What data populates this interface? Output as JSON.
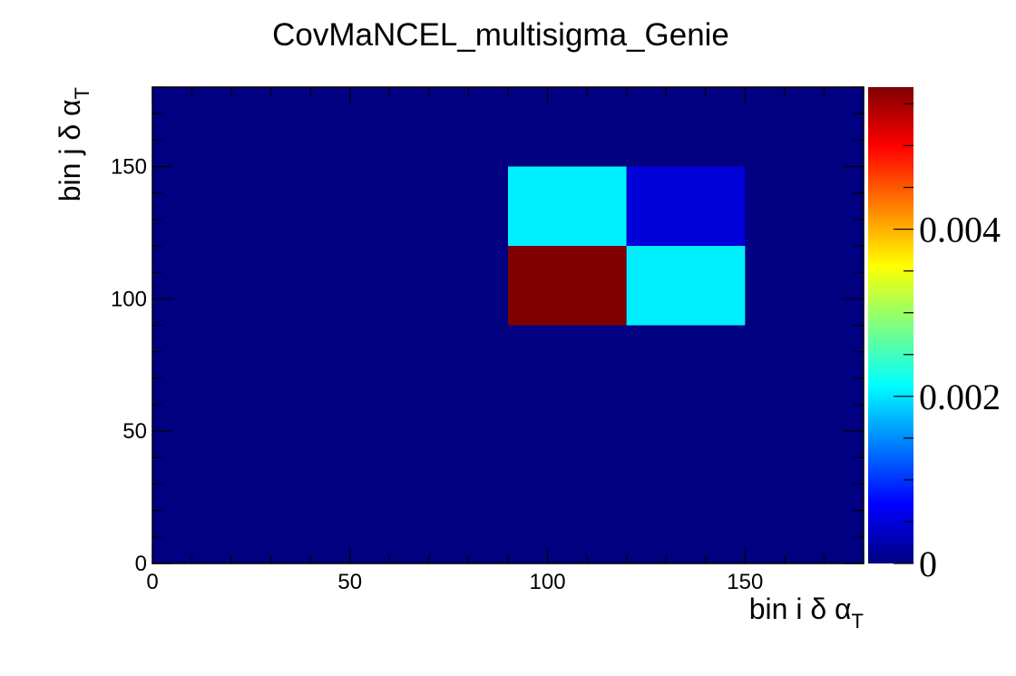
{
  "chart_data": {
    "type": "heatmap",
    "title": "CovMaNCEL_multisigma_Genie",
    "xlabel": {
      "prefix": "bin i δ α",
      "sub": "T"
    },
    "ylabel": {
      "prefix": "bin j δ α",
      "sub": "T"
    },
    "xlim": [
      0,
      180
    ],
    "ylim": [
      0,
      180
    ],
    "x_ticks": [
      0,
      50,
      100,
      150
    ],
    "y_ticks": [
      0,
      50,
      100,
      150
    ],
    "x_tick_labels": [
      "0",
      "50",
      "100",
      "150"
    ],
    "y_tick_labels": [
      "0",
      "50",
      "100",
      "150"
    ],
    "zlim": [
      0,
      0.0057
    ],
    "z_ticks": [
      0,
      0.002,
      0.004
    ],
    "z_tick_labels": [
      "0",
      "0.002",
      "0.004"
    ],
    "background_value": 0,
    "cells": [
      {
        "x0": 90,
        "x1": 120,
        "y0": 90,
        "y1": 120,
        "value": 0.0057
      },
      {
        "x0": 120,
        "x1": 150,
        "y0": 90,
        "y1": 120,
        "value": 0.00205
      },
      {
        "x0": 90,
        "x1": 120,
        "y0": 120,
        "y1": 150,
        "value": 0.00205
      },
      {
        "x0": 120,
        "x1": 150,
        "y0": 120,
        "y1": 150,
        "value": 0.0005
      }
    ],
    "colormap": "jet",
    "grid": false,
    "colorbar": "right"
  }
}
